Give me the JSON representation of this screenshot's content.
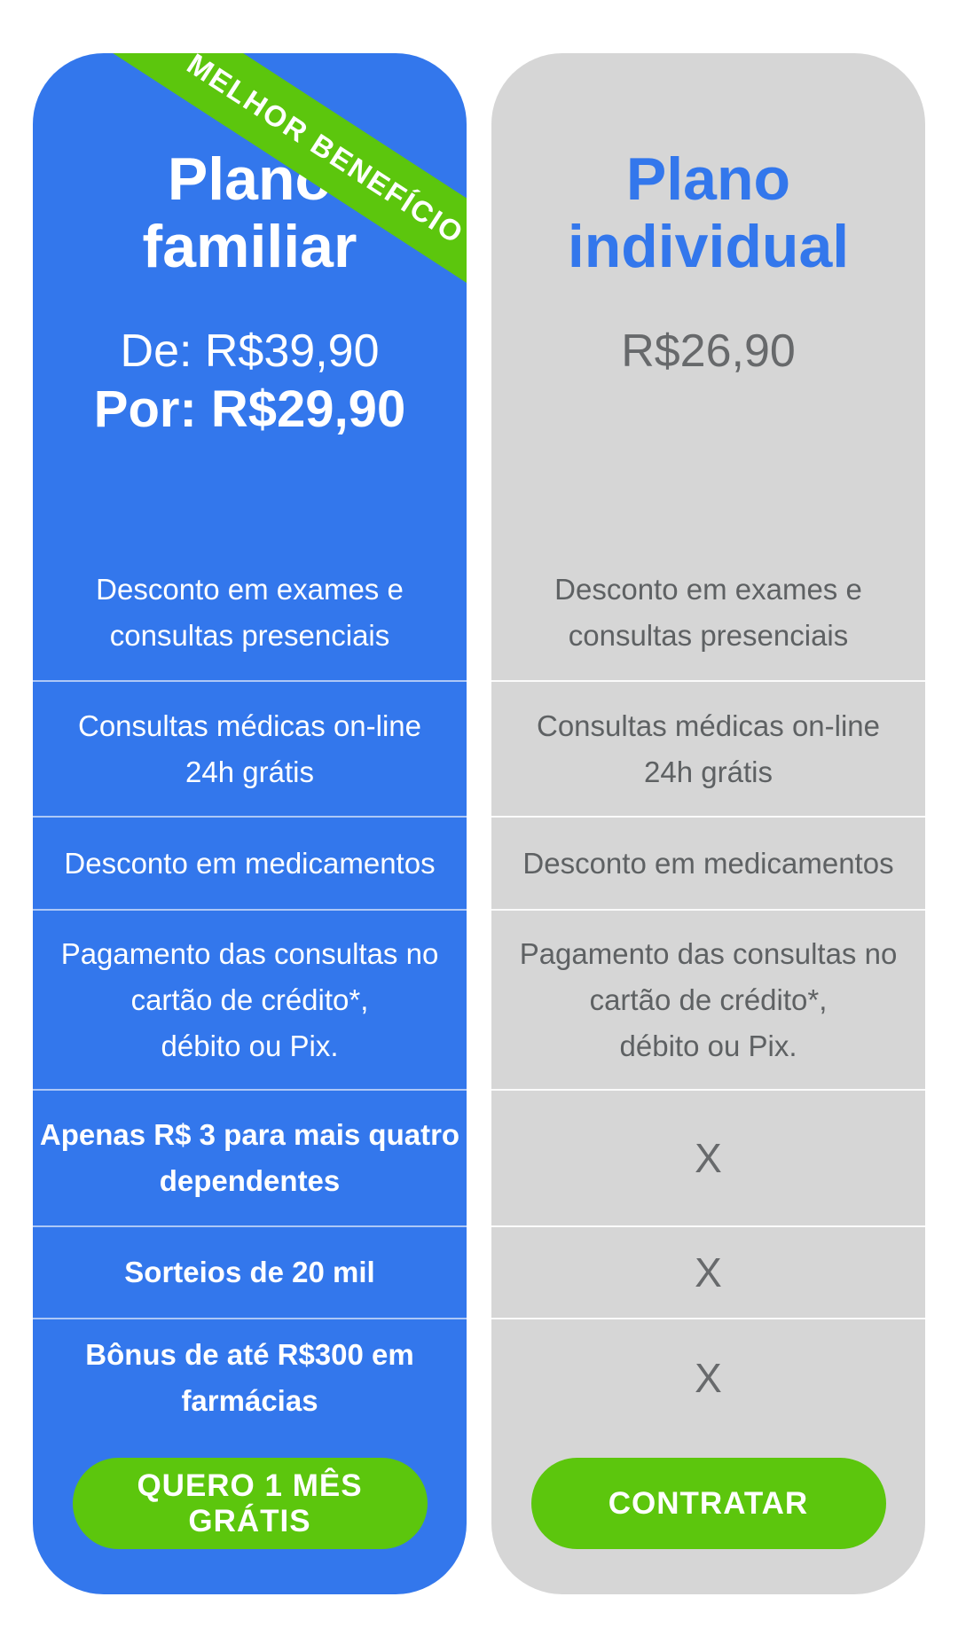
{
  "colors": {
    "card_blue": "#3377EC",
    "accent_green": "#5CC60D",
    "card_gray": "#D6D6D6",
    "feature_text_gray": "#5E6163",
    "price_text_gray": "#67696B",
    "text_white": "#FFFFFF"
  },
  "ribbon": {
    "label": "MELHOR BENEFÍCIO"
  },
  "plan_familiar": {
    "title_line1": "Plano",
    "title_line2": "familiar",
    "price_old": "De: R$39,90",
    "price_new": "Por: R$29,90",
    "features": [
      {
        "lines": [
          "Desconto em exames e",
          "consultas presenciais"
        ],
        "bold": false
      },
      {
        "lines": [
          "Consultas médicas on-line",
          "24h grátis"
        ],
        "bold": false
      },
      {
        "lines": [
          "Desconto em medicamentos"
        ],
        "bold": false
      },
      {
        "lines": [
          "Pagamento das consultas no",
          "cartão de crédito*,",
          "débito ou Pix."
        ],
        "bold": false
      },
      {
        "lines": [
          "Apenas R$ 3 para mais quatro",
          "dependentes"
        ],
        "bold": true
      },
      {
        "lines": [
          "Sorteios de 20 mil"
        ],
        "bold": true
      },
      {
        "lines": [
          "Bônus de até R$300 em",
          "farmácias"
        ],
        "bold": true
      }
    ],
    "cta": "QUERO 1 MÊS GRÁTIS"
  },
  "plan_individual": {
    "title_line1": "Plano",
    "title_line2": "individual",
    "price": "R$26,90",
    "features": [
      {
        "lines": [
          "Desconto em exames e",
          "consultas presenciais"
        ]
      },
      {
        "lines": [
          "Consultas médicas on-line",
          "24h grátis"
        ]
      },
      {
        "lines": [
          "Desconto em medicamentos"
        ]
      },
      {
        "lines": [
          "Pagamento das consultas no",
          "cartão de crédito*,",
          "débito ou Pix."
        ]
      },
      {
        "not_included": "X"
      },
      {
        "not_included": "X"
      },
      {
        "not_included": "X"
      }
    ],
    "cta": "CONTRATAR"
  }
}
